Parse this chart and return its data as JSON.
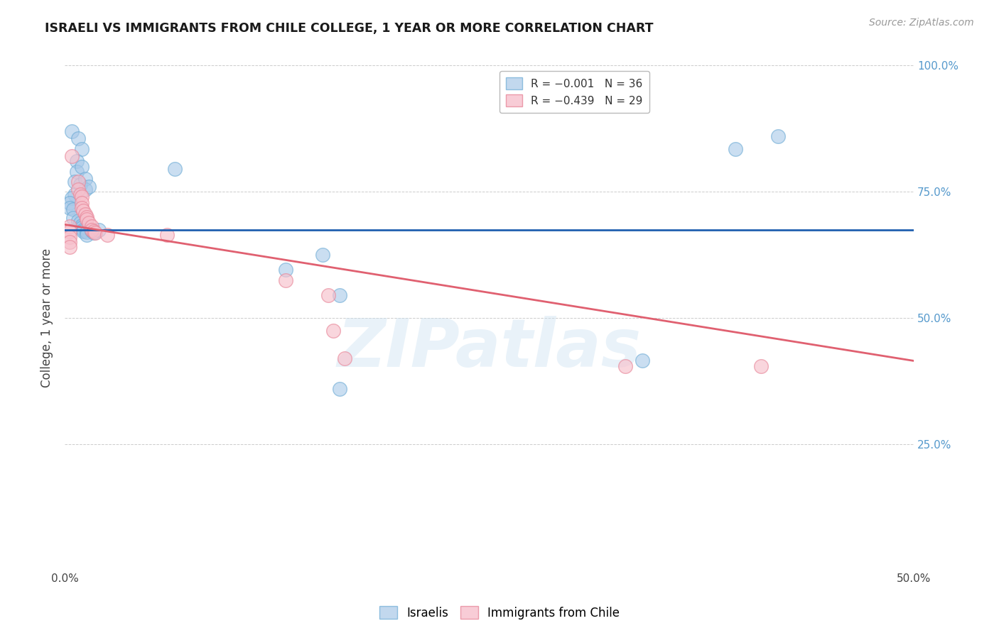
{
  "title": "ISRAELI VS IMMIGRANTS FROM CHILE COLLEGE, 1 YEAR OR MORE CORRELATION CHART",
  "source": "Source: ZipAtlas.com",
  "ylabel": "College, 1 year or more",
  "watermark": "ZIPatlas",
  "xlim": [
    0.0,
    0.5
  ],
  "ylim": [
    0.0,
    1.0
  ],
  "blue_color": "#a8c8e8",
  "blue_edge_color": "#6aaad4",
  "pink_color": "#f7c0cc",
  "pink_edge_color": "#e8889a",
  "trendline_blue_color": "#2060b0",
  "trendline_pink_color": "#e06070",
  "trendline_blue_y0": 0.675,
  "trendline_blue_y1": 0.675,
  "trendline_pink_y0": 0.685,
  "trendline_pink_y1": 0.415,
  "blue_points": [
    [
      0.004,
      0.87
    ],
    [
      0.008,
      0.855
    ],
    [
      0.01,
      0.835
    ],
    [
      0.007,
      0.81
    ],
    [
      0.007,
      0.79
    ],
    [
      0.01,
      0.8
    ],
    [
      0.006,
      0.77
    ],
    [
      0.009,
      0.765
    ],
    [
      0.012,
      0.775
    ],
    [
      0.012,
      0.755
    ],
    [
      0.014,
      0.76
    ],
    [
      0.006,
      0.745
    ],
    [
      0.004,
      0.738
    ],
    [
      0.003,
      0.728
    ],
    [
      0.003,
      0.718
    ],
    [
      0.005,
      0.715
    ],
    [
      0.005,
      0.698
    ],
    [
      0.008,
      0.692
    ],
    [
      0.009,
      0.688
    ],
    [
      0.01,
      0.683
    ],
    [
      0.01,
      0.678
    ],
    [
      0.011,
      0.675
    ],
    [
      0.011,
      0.672
    ],
    [
      0.013,
      0.67
    ],
    [
      0.013,
      0.665
    ],
    [
      0.016,
      0.673
    ],
    [
      0.017,
      0.668
    ],
    [
      0.02,
      0.675
    ],
    [
      0.065,
      0.795
    ],
    [
      0.13,
      0.595
    ],
    [
      0.152,
      0.625
    ],
    [
      0.162,
      0.545
    ],
    [
      0.162,
      0.36
    ],
    [
      0.34,
      0.415
    ],
    [
      0.395,
      0.835
    ],
    [
      0.42,
      0.86
    ]
  ],
  "pink_points": [
    [
      0.004,
      0.82
    ],
    [
      0.008,
      0.77
    ],
    [
      0.008,
      0.755
    ],
    [
      0.009,
      0.745
    ],
    [
      0.01,
      0.74
    ],
    [
      0.01,
      0.728
    ],
    [
      0.01,
      0.718
    ],
    [
      0.011,
      0.712
    ],
    [
      0.012,
      0.705
    ],
    [
      0.013,
      0.7
    ],
    [
      0.013,
      0.695
    ],
    [
      0.014,
      0.688
    ],
    [
      0.016,
      0.682
    ],
    [
      0.016,
      0.675
    ],
    [
      0.017,
      0.672
    ],
    [
      0.018,
      0.668
    ],
    [
      0.003,
      0.682
    ],
    [
      0.003,
      0.672
    ],
    [
      0.003,
      0.66
    ],
    [
      0.003,
      0.65
    ],
    [
      0.003,
      0.64
    ],
    [
      0.025,
      0.665
    ],
    [
      0.06,
      0.665
    ],
    [
      0.13,
      0.575
    ],
    [
      0.155,
      0.545
    ],
    [
      0.158,
      0.475
    ],
    [
      0.165,
      0.42
    ],
    [
      0.33,
      0.405
    ],
    [
      0.41,
      0.405
    ]
  ],
  "background_color": "#ffffff",
  "grid_color": "#cccccc",
  "right_axis_color": "#5599cc",
  "legend_blue_label": "R = -0.001   N = 36",
  "legend_pink_label": "R = -0.439   N = 29",
  "bottom_legend_blue": "Israelis",
  "bottom_legend_pink": "Immigrants from Chile"
}
